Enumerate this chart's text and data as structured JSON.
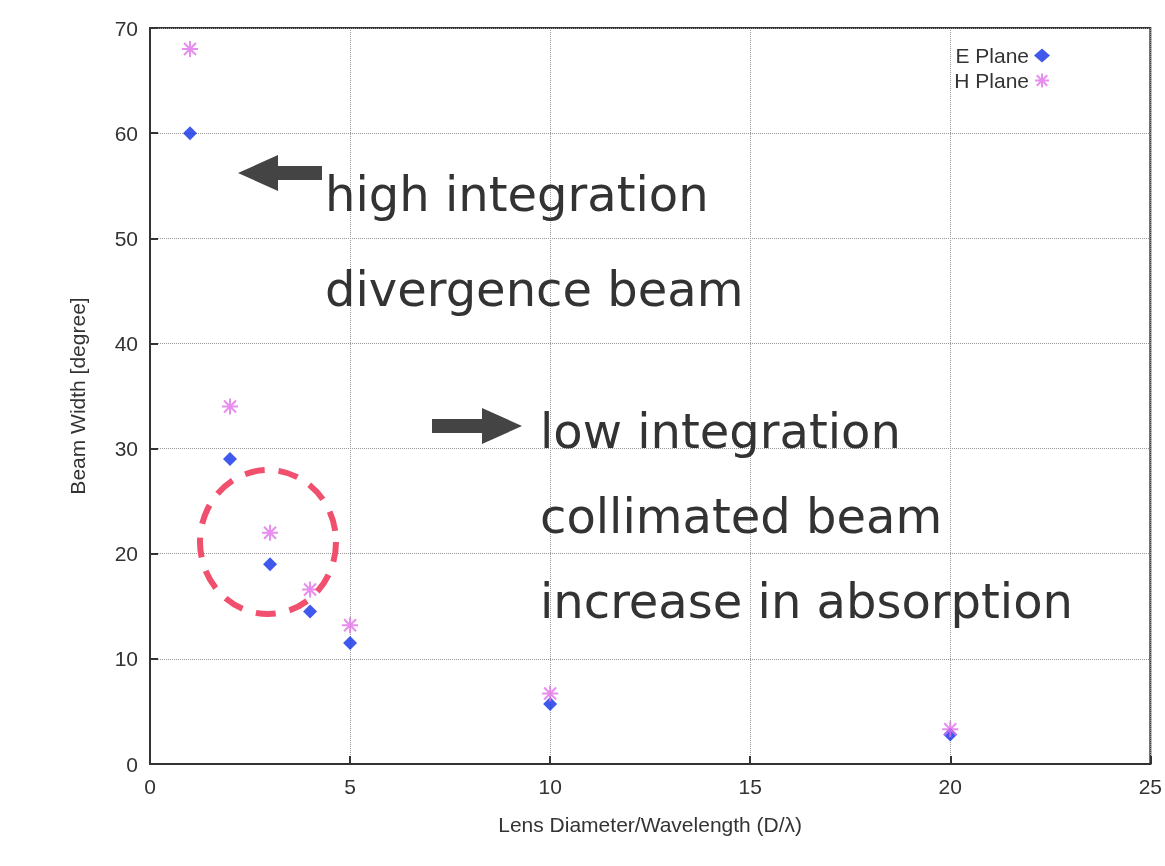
{
  "chart_data": {
    "type": "scatter",
    "xlabel": "Lens Diameter/Wavelength (D/λ)",
    "ylabel": "Beam Width [degree]",
    "series": [
      {
        "name": "E Plane",
        "color": "#1030e8",
        "marker": "diamond",
        "x": [
          1,
          2,
          3,
          4,
          5,
          10,
          20
        ],
        "values": [
          60,
          29,
          19,
          14.5,
          11.5,
          5.7,
          2.8
        ]
      },
      {
        "name": "H Plane",
        "color": "#e070e8",
        "marker": "cross",
        "x": [
          1,
          2,
          3,
          4,
          5,
          10,
          20
        ],
        "values": [
          68,
          34,
          22,
          16.6,
          13.2,
          6.7,
          3.3
        ]
      }
    ],
    "xlim": [
      0,
      25
    ],
    "xticks": [
      0,
      5,
      10,
      15,
      20,
      25
    ],
    "ylim": [
      0,
      70
    ],
    "yticks": [
      0,
      10,
      20,
      30,
      40,
      50,
      60,
      70
    ],
    "grid": true,
    "legend": "top right",
    "annotations": [
      "high integration\ndivergence beam",
      "low integration\ncollimated beam\nincrease in absorption"
    ]
  }
}
